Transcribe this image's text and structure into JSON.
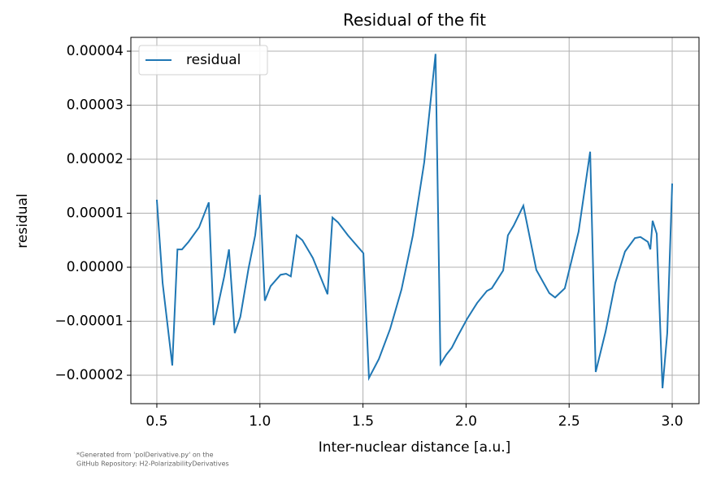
{
  "chart_data": {
    "type": "line",
    "title": "Residual of the fit",
    "xlabel": "Inter-nuclear distance [a.u.]",
    "ylabel": "residual",
    "footnote": [
      "*Generated from 'polDerivative.py' on the",
      "GitHub Repository: H2-PolarizabilityDerivatives"
    ],
    "x": [
      0.5,
      0.528,
      0.575,
      0.6,
      0.622,
      0.654,
      0.705,
      0.752,
      0.776,
      0.8,
      0.827,
      0.85,
      0.878,
      0.905,
      0.945,
      0.977,
      1.0,
      1.024,
      1.052,
      1.1,
      1.127,
      1.15,
      1.178,
      1.206,
      1.257,
      1.328,
      1.352,
      1.379,
      1.427,
      1.502,
      1.529,
      1.577,
      1.632,
      1.687,
      1.742,
      1.797,
      1.852,
      1.876,
      1.904,
      1.931,
      1.959,
      2.006,
      2.054,
      2.101,
      2.125,
      2.18,
      2.203,
      2.231,
      2.278,
      2.341,
      2.404,
      2.432,
      2.479,
      2.546,
      2.602,
      2.629,
      2.677,
      2.724,
      2.771,
      2.819,
      2.846,
      2.882,
      2.894,
      2.905,
      2.925,
      2.953,
      2.976,
      3.0
    ],
    "series": [
      {
        "name": "residual",
        "color": "#1f77b4",
        "values": [
          1.25e-05,
          -2.9e-06,
          -1.82e-05,
          3.3e-06,
          3.3e-06,
          4.7e-06,
          7.4e-06,
          1.2e-05,
          -1.07e-05,
          -6.5e-06,
          -1.7e-06,
          3.3e-06,
          -1.22e-05,
          -9.2e-06,
          -2e-07,
          5.9e-06,
          1.34e-05,
          -6.2e-06,
          -3.5e-06,
          -1.4e-06,
          -1.2e-06,
          -1.7e-06,
          5.9e-06,
          5e-06,
          1.7e-06,
          -5e-06,
          9.2e-06,
          8.3e-06,
          5.9e-06,
          2.6e-06,
          -2.05e-05,
          -1.7e-05,
          -1.14e-05,
          -4.1e-06,
          5.9e-06,
          1.94e-05,
          3.95e-05,
          -1.79e-05,
          -1.62e-05,
          -1.49e-05,
          -1.28e-05,
          -9.5e-06,
          -6.6e-06,
          -4.4e-06,
          -3.9e-06,
          -6e-07,
          5.9e-06,
          7.7e-06,
          1.14e-05,
          -5e-07,
          -4.8e-06,
          -5.6e-06,
          -3.9e-06,
          6.6e-06,
          2.14e-05,
          -1.94e-05,
          -1.19e-05,
          -2.9e-06,
          2.9e-06,
          5.4e-06,
          5.6e-06,
          4.7e-06,
          3.3e-06,
          8.6e-06,
          6.2e-06,
          -2.24e-05,
          -1.22e-05,
          1.55e-05
        ]
      }
    ],
    "xlim": [
      0.374,
      3.13
    ],
    "ylim": [
      -2.526e-05,
      4.256e-05
    ],
    "xticks": [
      0.5,
      {
        "value": 1.0,
        "label": "1.0"
      },
      1.5,
      {
        "value": 2.0,
        "label": "2.0"
      },
      2.5,
      {
        "value": 3.0,
        "label": "3.0"
      }
    ],
    "yticks": [
      {
        "value": -2e-05,
        "label": "−0.00002"
      },
      {
        "value": -1e-05,
        "label": "−0.00001"
      },
      {
        "value": 0,
        "label": "0.00000"
      },
      {
        "value": 1e-05,
        "label": "0.00001"
      },
      {
        "value": 2e-05,
        "label": "0.00002"
      },
      {
        "value": 3e-05,
        "label": "0.00003"
      },
      {
        "value": 4e-05,
        "label": "0.00004"
      }
    ],
    "grid": true,
    "legend": "upper left"
  }
}
